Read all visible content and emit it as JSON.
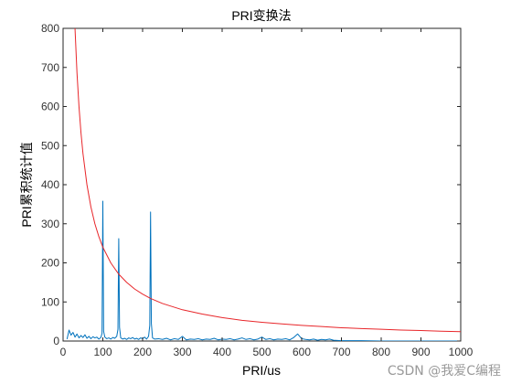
{
  "chart_data": {
    "type": "line",
    "title": "PRI变换法",
    "xlabel": "PRI/us",
    "ylabel": "PRI累积统计值",
    "xlim": [
      0,
      1000
    ],
    "ylim": [
      0,
      800
    ],
    "xticks": [
      0,
      100,
      200,
      300,
      400,
      500,
      600,
      700,
      800,
      900,
      1000
    ],
    "yticks": [
      0,
      100,
      200,
      300,
      400,
      500,
      600,
      700,
      800
    ],
    "grid": false,
    "legend": "none",
    "series": [
      {
        "color": "#0072bd",
        "x": [
          10,
          15,
          20,
          25,
          30,
          35,
          40,
          45,
          50,
          55,
          60,
          65,
          70,
          75,
          80,
          85,
          90,
          95,
          98,
          100,
          102,
          105,
          110,
          115,
          120,
          125,
          130,
          135,
          138,
          140,
          142,
          145,
          150,
          155,
          160,
          165,
          170,
          175,
          180,
          185,
          190,
          195,
          200,
          205,
          210,
          215,
          218,
          220,
          222,
          225,
          230,
          240,
          250,
          260,
          270,
          280,
          290,
          300,
          310,
          320,
          330,
          340,
          350,
          360,
          370,
          380,
          390,
          400,
          410,
          420,
          430,
          440,
          450,
          460,
          470,
          480,
          490,
          500,
          510,
          520,
          530,
          540,
          550,
          560,
          570,
          580,
          590,
          600,
          610,
          620,
          630,
          640,
          650,
          660,
          670,
          680,
          700,
          750,
          800,
          850,
          900,
          950,
          1000
        ],
        "values": [
          5,
          28,
          15,
          22,
          10,
          18,
          8,
          14,
          9,
          16,
          7,
          12,
          6,
          11,
          8,
          10,
          5,
          9,
          20,
          358,
          25,
          10,
          6,
          8,
          5,
          9,
          7,
          12,
          30,
          262,
          35,
          8,
          5,
          7,
          4,
          8,
          6,
          9,
          5,
          7,
          4,
          8,
          6,
          10,
          5,
          12,
          40,
          330,
          45,
          8,
          5,
          6,
          4,
          7,
          3,
          6,
          4,
          12,
          3,
          5,
          4,
          6,
          3,
          5,
          4,
          7,
          3,
          5,
          4,
          6,
          3,
          5,
          8,
          4,
          6,
          3,
          5,
          10,
          4,
          6,
          3,
          5,
          4,
          6,
          3,
          9,
          18,
          6,
          4,
          3,
          5,
          2,
          4,
          3,
          5,
          2,
          1,
          1,
          0,
          0,
          0,
          0,
          0
        ]
      },
      {
        "color": "#e8262a",
        "x": [
          30,
          35,
          40,
          45,
          50,
          60,
          70,
          80,
          90,
          100,
          120,
          140,
          160,
          180,
          200,
          220,
          250,
          300,
          350,
          400,
          450,
          500,
          550,
          600,
          650,
          700,
          750,
          800,
          850,
          900,
          950,
          1000
        ],
        "values": [
          800,
          686,
          600,
          533,
          480,
          400,
          343,
          300,
          267,
          240,
          200,
          171,
          150,
          133,
          120,
          109,
          96,
          80,
          69,
          60,
          53,
          48,
          44,
          40,
          37,
          34,
          32,
          30,
          28,
          27,
          25,
          24
        ]
      }
    ]
  },
  "watermark": "CSDN @我爱C编程"
}
